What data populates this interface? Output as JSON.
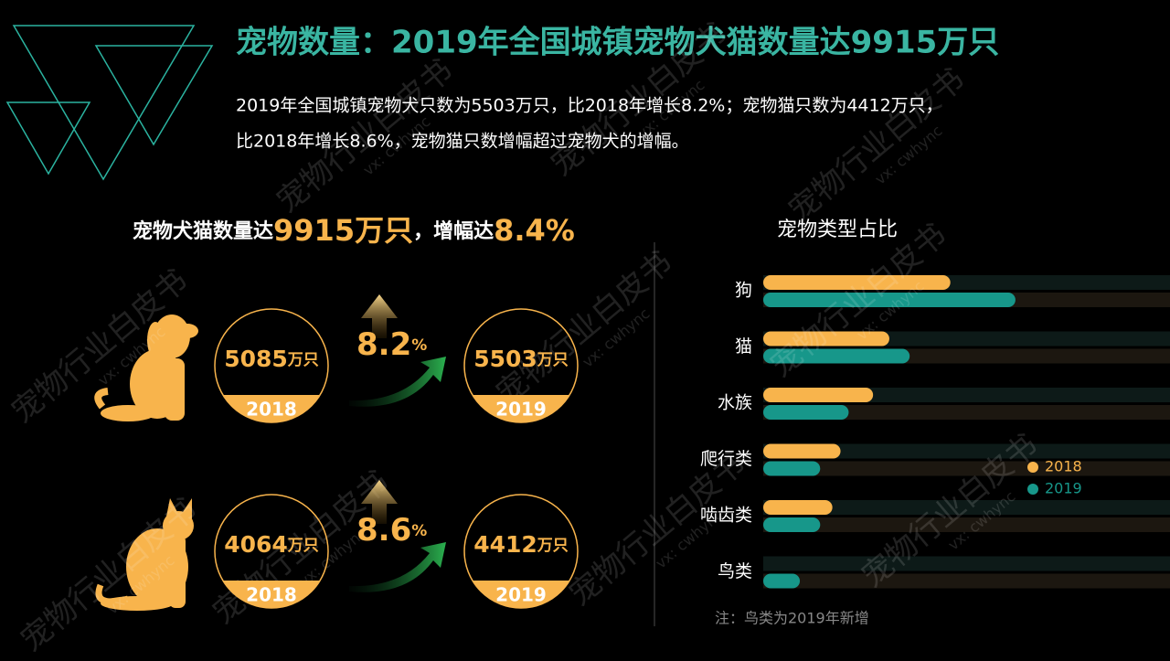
{
  "header": {
    "title": "宠物数量：2019年全国城镇宠物犬猫数量达9915万只",
    "description": [
      "2019年全国城镇宠物犬只数为5503万只，比2018年增长8.2%；宠物猫只数为4412万只，",
      "比2018年增长8.6%，宠物猫只数增幅超过宠物犬的增幅。"
    ]
  },
  "summary": {
    "lead": "宠物犬猫数量达",
    "total": "9915万只",
    "middle": "，增幅达",
    "growth": "8.4%"
  },
  "comparisons": [
    {
      "from_value": 5085,
      "from_unit": "万只",
      "from_year": "2018",
      "growth_value": 8.2,
      "growth_unit": "%",
      "to_value": 5503,
      "to_unit": "万只",
      "to_year": "2019"
    },
    {
      "from_value": 4064,
      "from_unit": "万只",
      "from_year": "2018",
      "growth_value": 8.6,
      "growth_unit": "%",
      "to_value": 4412,
      "to_unit": "万只",
      "to_year": "2019"
    }
  ],
  "chart_data": {
    "type": "bar",
    "orientation": "horizontal",
    "title": "宠物类型占比",
    "categories": [
      "狗",
      "猫",
      "水族",
      "爬行类",
      "啮齿类",
      "鸟类"
    ],
    "series": [
      {
        "name": "2018",
        "color": "#f8b44c",
        "values": [
          46,
          31,
          27,
          19,
          17,
          null
        ]
      },
      {
        "name": "2019",
        "color": "#17978a",
        "values": [
          62,
          36,
          21,
          14,
          14,
          9
        ]
      }
    ],
    "xlim": [
      0,
      100
    ],
    "legend": "right"
  },
  "note": "注：鸟类为2019年新增",
  "watermark": {
    "text": "宠物行业白皮书",
    "contact": "vx: cwhync"
  }
}
